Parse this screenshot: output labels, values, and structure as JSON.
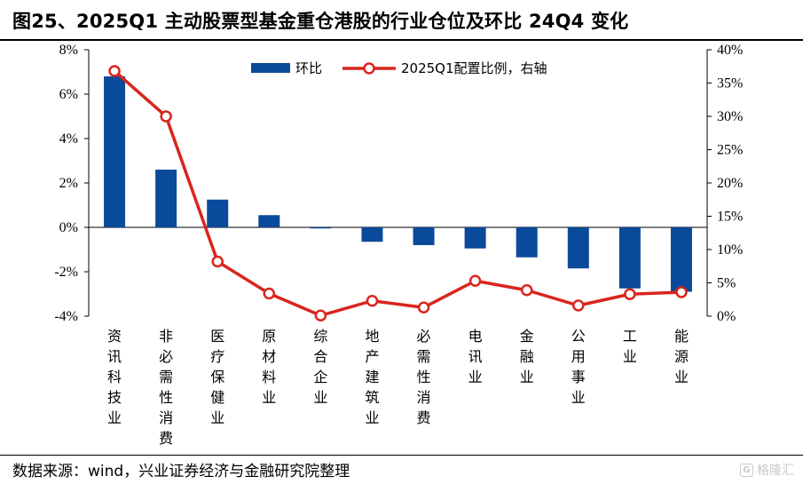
{
  "title": "图25、2025Q1 主动股票型基金重仓港股的行业仓位及环比 24Q4 变化",
  "source": "数据来源：wind，兴业证券经济与金融研究院整理",
  "watermark": {
    "icon": "G",
    "text": "格隆汇"
  },
  "chart_data": {
    "type": "bar",
    "categories": [
      "资讯科技业",
      "非必需性消费",
      "医疗保健业",
      "原材料业",
      "综合企业",
      "地产建筑业",
      "必需性消费",
      "电讯业",
      "金融业",
      "公用事业",
      "工业",
      "能源业"
    ],
    "series": [
      {
        "name": "环比",
        "type": "bar",
        "axis": "left",
        "color": "#0a4a9a",
        "values": [
          6.8,
          2.6,
          1.25,
          0.55,
          -0.05,
          -0.65,
          -0.8,
          -0.95,
          -1.35,
          -1.85,
          -2.75,
          -2.9
        ]
      },
      {
        "name": "2025Q1配置比例，右轴",
        "type": "line",
        "axis": "right",
        "color": "#d9251d",
        "values": [
          36.8,
          30.0,
          8.2,
          3.4,
          0.1,
          2.3,
          1.3,
          5.3,
          3.9,
          1.6,
          3.3,
          3.6
        ]
      }
    ],
    "yleft": {
      "min": -4,
      "max": 8,
      "ticks": [
        "-4%",
        "-2%",
        "0%",
        "2%",
        "4%",
        "6%",
        "8%"
      ]
    },
    "yright": {
      "min": 0,
      "max": 40,
      "ticks": [
        "0%",
        "5%",
        "10%",
        "15%",
        "20%",
        "25%",
        "30%",
        "35%",
        "40%"
      ]
    },
    "grid": false,
    "legend": "top-center"
  }
}
